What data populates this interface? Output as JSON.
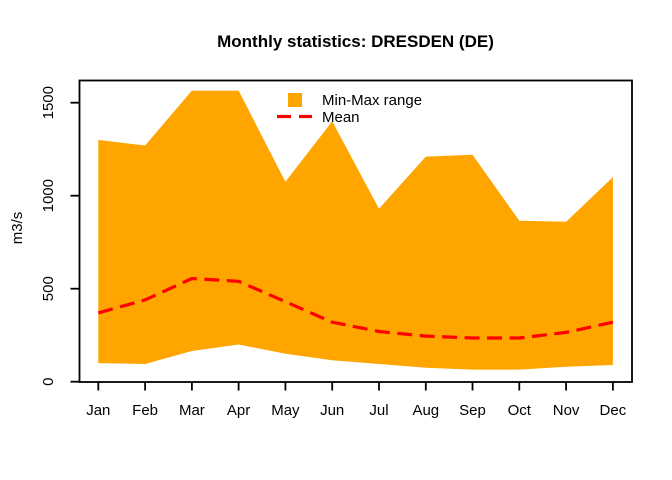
{
  "title": "Monthly statistics: DRESDEN (DE)",
  "y_axis": {
    "label": "m3/s",
    "ticks": [
      "0",
      "500",
      "1000",
      "1500"
    ],
    "tick_values": [
      0,
      500,
      1000,
      1500
    ]
  },
  "x_axis": {
    "labels": [
      "Jan",
      "Feb",
      "Mar",
      "Apr",
      "May",
      "Jun",
      "Jul",
      "Aug",
      "Sep",
      "Oct",
      "Nov",
      "Dec"
    ]
  },
  "legend": {
    "items": [
      {
        "label": "Min-Max range",
        "swatch": "filled-square"
      },
      {
        "label": "Mean",
        "swatch": "dashed-line"
      }
    ]
  },
  "colors": {
    "band": "#FFA500",
    "mean_line": "#FF0000",
    "axis": "#000000",
    "background": "#FFFFFF"
  },
  "chart_data": {
    "type": "area",
    "title": "Monthly statistics: DRESDEN (DE)",
    "xlabel": "",
    "ylabel": "m3/s",
    "categories": [
      "Jan",
      "Feb",
      "Mar",
      "Apr",
      "May",
      "Jun",
      "Jul",
      "Aug",
      "Sep",
      "Oct",
      "Nov",
      "Dec"
    ],
    "series": [
      {
        "name": "Min",
        "values": [
          100,
          95,
          165,
          200,
          150,
          115,
          95,
          75,
          65,
          65,
          80,
          90
        ]
      },
      {
        "name": "Max",
        "values": [
          1300,
          1270,
          1565,
          1565,
          1075,
          1400,
          930,
          1210,
          1220,
          865,
          860,
          1100
        ]
      },
      {
        "name": "Mean",
        "values": [
          370,
          440,
          555,
          540,
          430,
          320,
          270,
          245,
          235,
          235,
          265,
          320
        ]
      }
    ],
    "band": {
      "lower": "Min",
      "upper": "Max",
      "label": "Min-Max range"
    },
    "ylim": [
      0,
      1600
    ],
    "y_ticks": [
      0,
      500,
      1000,
      1500
    ],
    "grid": false,
    "legend_position": "top-center-inside"
  }
}
